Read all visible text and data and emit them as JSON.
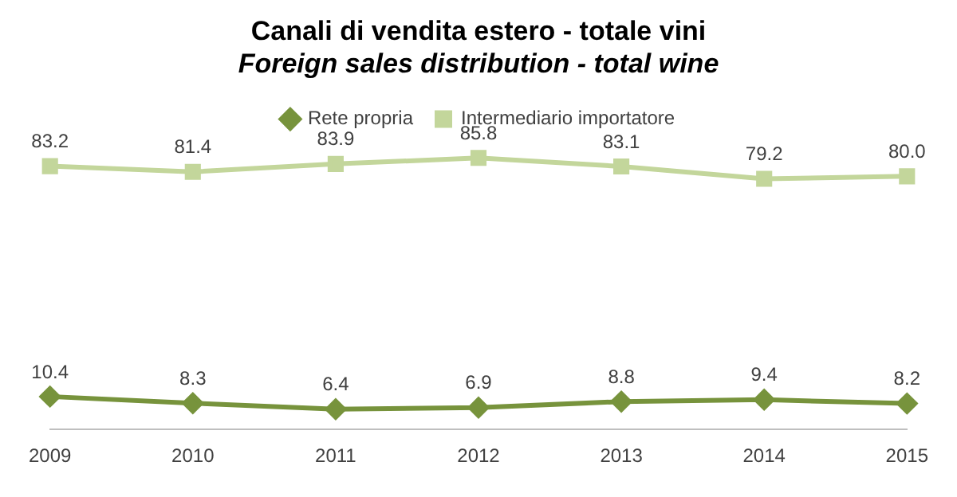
{
  "chart_data": {
    "type": "line",
    "title": "Canali di vendita estero - totale vini",
    "subtitle": "Foreign sales distribution - total wine",
    "categories": [
      "2009",
      "2010",
      "2011",
      "2012",
      "2013",
      "2014",
      "2015"
    ],
    "series": [
      {
        "name": "Rete propria",
        "color": "#77933c",
        "marker": "diamond",
        "values": [
          10.4,
          8.3,
          6.4,
          6.9,
          8.8,
          9.4,
          8.2
        ],
        "value_labels": [
          "10.4",
          "8.3",
          "6.4",
          "6.9",
          "8.8",
          "9.4",
          "8.2"
        ]
      },
      {
        "name": "Intermediario importatore",
        "color": "#c3d69b",
        "marker": "square",
        "values": [
          83.2,
          81.4,
          83.9,
          85.8,
          83.1,
          79.2,
          80.0
        ],
        "value_labels": [
          "83.2",
          "81.4",
          "83.9",
          "85.8",
          "83.1",
          "79.2",
          "80.0"
        ]
      }
    ],
    "tick_labels": "x",
    "grid": false,
    "legend": "top",
    "line_style": "solid"
  }
}
